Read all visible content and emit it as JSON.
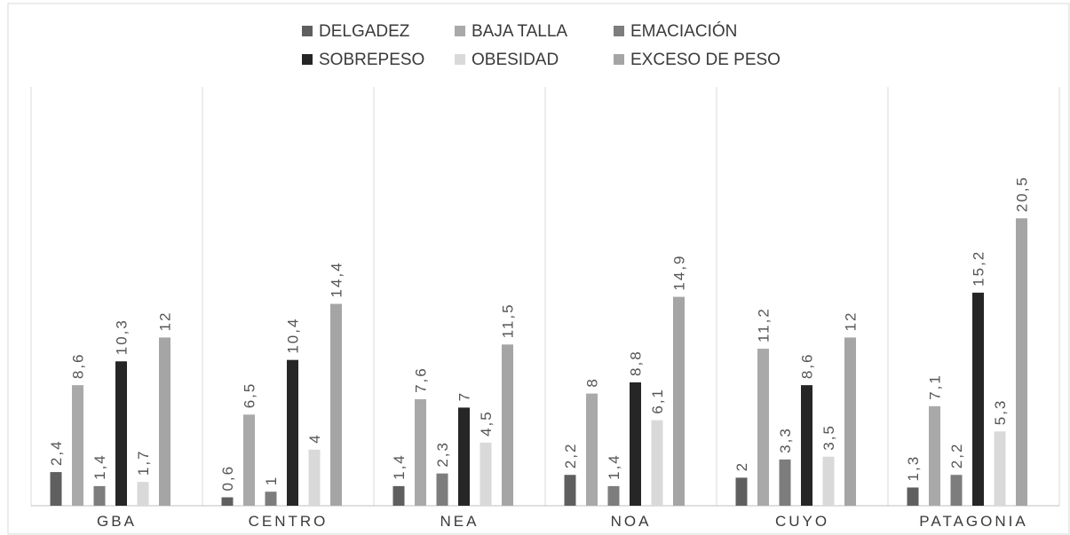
{
  "chart_data": {
    "type": "bar",
    "categories": [
      "GBA",
      "CENTRO",
      "NEA",
      "NOA",
      "CUYO",
      "PATAGONIA"
    ],
    "series": [
      {
        "name": "DELGADEZ",
        "color": "#5f5f5f",
        "values": [
          2.4,
          0.6,
          1.4,
          2.2,
          2,
          1.3
        ],
        "labels": [
          "2,4",
          "0,6",
          "1,4",
          "2,2",
          "2",
          "1,3"
        ]
      },
      {
        "name": "BAJA TALLA",
        "color": "#a9a9a9",
        "values": [
          8.6,
          6.5,
          7.6,
          8,
          11.2,
          7.1
        ],
        "labels": [
          "8,6",
          "6,5",
          "7,6",
          "8",
          "11,2",
          "7,1"
        ]
      },
      {
        "name": "EMACIACIÓN",
        "color": "#7d7d7d",
        "values": [
          1.4,
          1,
          2.3,
          1.4,
          3.3,
          2.2
        ],
        "labels": [
          "1,4",
          "1",
          "2,3",
          "1,4",
          "3,3",
          "2,2"
        ]
      },
      {
        "name": "SOBREPESO",
        "color": "#262626",
        "values": [
          10.3,
          10.4,
          7,
          8.8,
          8.6,
          15.2
        ],
        "labels": [
          "10,3",
          "10,4",
          "7",
          "8,8",
          "8,6",
          "15,2"
        ]
      },
      {
        "name": "OBESIDAD",
        "color": "#d9d9d9",
        "values": [
          1.7,
          4,
          4.5,
          6.1,
          3.5,
          5.3
        ],
        "labels": [
          "1,7",
          "4",
          "4,5",
          "6,1",
          "3,5",
          "5,3"
        ]
      },
      {
        "name": "EXCESO DE PESO",
        "color": "#a5a5a5",
        "values": [
          12,
          14.4,
          11.5,
          14.9,
          12,
          20.5
        ],
        "labels": [
          "12",
          "14,4",
          "11,5",
          "14,9",
          "12",
          "20,5"
        ]
      }
    ],
    "ylim": [
      0,
      24
    ],
    "grid": "vertical-category-dividers",
    "legend_position": "top-center",
    "title": "",
    "xlabel": "",
    "ylabel": ""
  }
}
